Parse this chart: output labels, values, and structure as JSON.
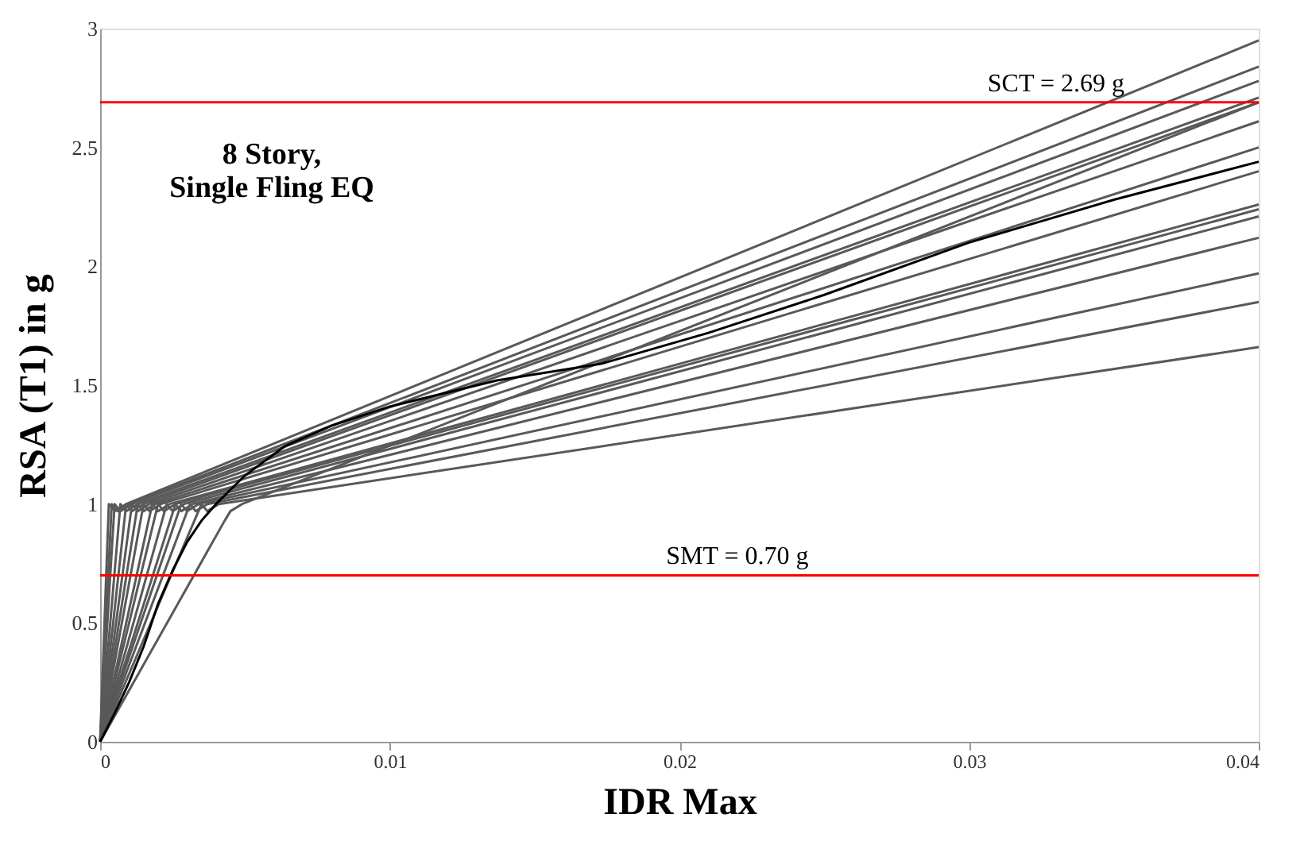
{
  "chart_data": {
    "type": "line",
    "xlabel": "IDR Max",
    "ylabel": "RSA (T1) in g",
    "xlim": [
      0,
      0.04
    ],
    "ylim": [
      0,
      3
    ],
    "xticks": [
      0,
      0.01,
      0.02,
      0.03,
      0.04
    ],
    "yticks": [
      0,
      0.5,
      1,
      1.5,
      2,
      2.5,
      3
    ],
    "grid": false,
    "legend": false,
    "marker": "none",
    "line_style": "solid",
    "annotations": [
      "8 Story,\nSingle Fling EQ"
    ],
    "ref_lines": [
      {
        "axis": "y",
        "value": 2.69,
        "label": "SCT = 2.69 g",
        "color": "#ff0000"
      },
      {
        "axis": "y",
        "value": 0.7,
        "label": "SMT = 0.70 g",
        "color": "#ff0000"
      }
    ],
    "series": [
      {
        "color": "#595959",
        "x": [
          0,
          0.0003,
          0.0005,
          0.0009,
          0.04
        ],
        "values": [
          0,
          1.0,
          0.97,
          1.0,
          2.95
        ]
      },
      {
        "color": "#595959",
        "x": [
          0,
          0.0004,
          0.0006,
          0.001,
          0.04
        ],
        "values": [
          0,
          1.0,
          0.97,
          1.0,
          2.84
        ]
      },
      {
        "color": "#595959",
        "x": [
          0,
          0.0005,
          0.0007,
          0.0011,
          0.04
        ],
        "values": [
          0,
          1.0,
          0.97,
          1.0,
          2.78
        ]
      },
      {
        "color": "#595959",
        "x": [
          0,
          0.0007,
          0.0009,
          0.0013,
          0.04
        ],
        "values": [
          0,
          1.0,
          0.97,
          1.0,
          2.71
        ]
      },
      {
        "color": "#595959",
        "x": [
          0,
          0.0009,
          0.0011,
          0.0015,
          0.04
        ],
        "values": [
          0,
          1.0,
          0.97,
          1.0,
          2.69
        ]
      },
      {
        "color": "#595959",
        "x": [
          0,
          0.0011,
          0.0013,
          0.0017,
          0.04
        ],
        "values": [
          0,
          1.0,
          0.97,
          1.0,
          2.61
        ]
      },
      {
        "color": "#595959",
        "x": [
          0,
          0.0013,
          0.0015,
          0.0019,
          0.04
        ],
        "values": [
          0,
          1.0,
          0.97,
          1.0,
          2.5
        ]
      },
      {
        "color": "#595959",
        "x": [
          0,
          0.0015,
          0.0017,
          0.0021,
          0.04
        ],
        "values": [
          0,
          1.0,
          0.97,
          1.0,
          2.4
        ]
      },
      {
        "color": "#595959",
        "x": [
          0,
          0.0018,
          0.002,
          0.0024,
          0.04
        ],
        "values": [
          0,
          1.0,
          0.97,
          1.0,
          2.26
        ]
      },
      {
        "color": "#595959",
        "x": [
          0,
          0.002,
          0.0022,
          0.0026,
          0.04
        ],
        "values": [
          0,
          1.0,
          0.97,
          1.0,
          2.24
        ]
      },
      {
        "color": "#595959",
        "x": [
          0,
          0.0023,
          0.0025,
          0.0029,
          0.04
        ],
        "values": [
          0,
          1.0,
          0.97,
          1.0,
          2.21
        ]
      },
      {
        "color": "#595959",
        "x": [
          0,
          0.0026,
          0.0028,
          0.0032,
          0.04
        ],
        "values": [
          0,
          1.0,
          0.97,
          1.0,
          2.12
        ]
      },
      {
        "color": "#595959",
        "x": [
          0,
          0.0028,
          0.003,
          0.0034,
          0.04
        ],
        "values": [
          0,
          1.0,
          0.97,
          1.0,
          1.97
        ]
      },
      {
        "color": "#595959",
        "x": [
          0,
          0.0031,
          0.0033,
          0.0037,
          0.04
        ],
        "values": [
          0,
          1.0,
          0.97,
          1.0,
          1.85
        ]
      },
      {
        "color": "#595959",
        "x": [
          0,
          0.0035,
          0.0037,
          0.0041,
          0.04
        ],
        "values": [
          0,
          1.0,
          0.97,
          1.0,
          1.66
        ]
      },
      {
        "color": "#595959",
        "x": [
          0,
          0.0043,
          0.0045,
          0.0049,
          0.04
        ],
        "values": [
          0,
          0.93,
          0.97,
          1.0,
          2.69
        ]
      },
      {
        "color": "#000000",
        "x": [
          0,
          0.0005,
          0.001,
          0.0015,
          0.002,
          0.0025,
          0.003,
          0.0035,
          0.004,
          0.005,
          0.0064,
          0.008,
          0.01,
          0.0137,
          0.0173,
          0.021,
          0.025,
          0.03,
          0.035,
          0.04
        ],
        "values": [
          0,
          0.12,
          0.25,
          0.4,
          0.58,
          0.72,
          0.84,
          0.93,
          1.0,
          1.12,
          1.245,
          1.33,
          1.41,
          1.52,
          1.59,
          1.72,
          1.88,
          2.1,
          2.28,
          2.44
        ]
      }
    ]
  }
}
